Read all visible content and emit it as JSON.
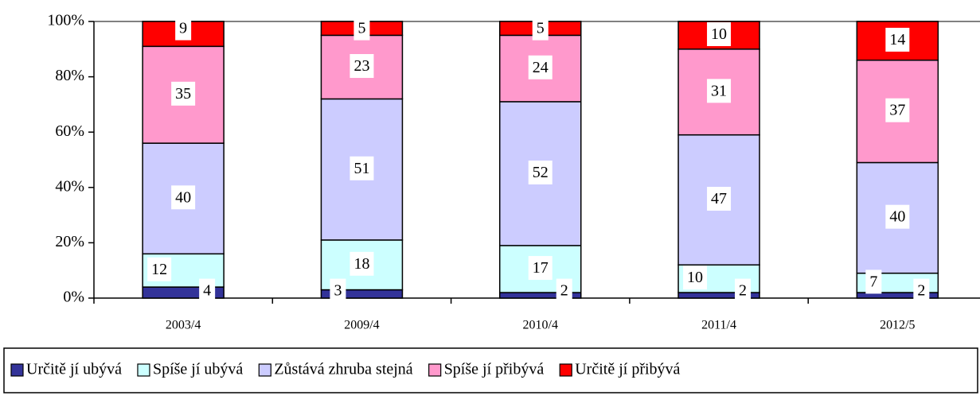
{
  "chart_data": {
    "type": "stacked_bar",
    "categories": [
      "2003/4",
      "2009/4",
      "2010/4",
      "2011/4",
      "2012/5"
    ],
    "series": [
      {
        "name": "Určitě jí ubývá",
        "color": "#333399",
        "values": [
          4,
          3,
          2,
          2,
          2
        ]
      },
      {
        "name": "Spíše jí ubývá",
        "color": "#ccffff",
        "values": [
          12,
          18,
          17,
          10,
          7
        ]
      },
      {
        "name": "Zůstává zhruba stejná",
        "color": "#ccccff",
        "values": [
          40,
          51,
          52,
          47,
          40
        ]
      },
      {
        "name": "Spíše jí přibývá",
        "color": "#ff99cc",
        "values": [
          35,
          23,
          24,
          31,
          37
        ]
      },
      {
        "name": "Určitě jí přibývá",
        "color": "#ff0000",
        "values": [
          9,
          5,
          5,
          10,
          14
        ]
      }
    ],
    "ylim": [
      0,
      100
    ],
    "yticks": [
      {
        "value": 0,
        "label": "0%"
      },
      {
        "value": 20,
        "label": "20%"
      },
      {
        "value": 40,
        "label": "40%"
      },
      {
        "value": 60,
        "label": "60%"
      },
      {
        "value": 80,
        "label": "80%"
      },
      {
        "value": 100,
        "label": "100%"
      }
    ],
    "legend": "bottom"
  }
}
